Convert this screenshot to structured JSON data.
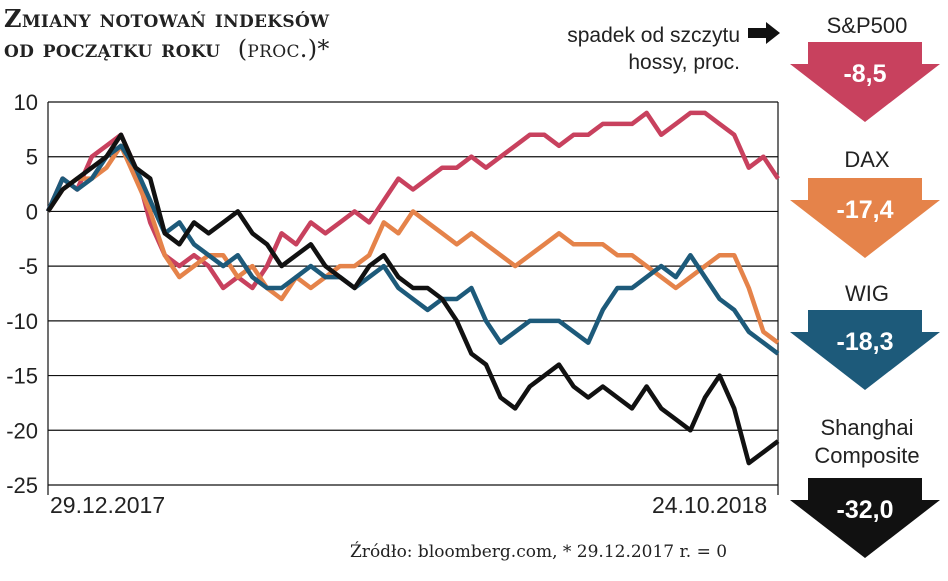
{
  "title": {
    "line1": "Zmiany notowań indeksów",
    "line2": "od początku roku",
    "unit": "(proc.)*"
  },
  "note": {
    "line1": "spadek od szczytu",
    "line2": "hossy, proc."
  },
  "source": "Źródło: bloomberg.com, * 29.12.2017 r. = 0",
  "indices": [
    {
      "name": "S&P500",
      "drop": "-8,5",
      "color": "#c8415e"
    },
    {
      "name": "DAX",
      "drop": "-17,4",
      "color": "#e5834a"
    },
    {
      "name": "WIG",
      "drop": "-18,3",
      "color": "#1d5a7a"
    },
    {
      "name": "Shanghai Composite",
      "drop": "-32,0",
      "color": "#111111"
    }
  ],
  "chart_data": {
    "type": "line",
    "x_start": "29.12.2017",
    "x_end": "24.10.2018",
    "ylim": [
      -25,
      10
    ],
    "yticks": [
      10,
      5,
      0,
      -5,
      -10,
      -15,
      -20,
      -25
    ],
    "series": [
      {
        "name": "S&P500",
        "color": "#c8415e",
        "x": [
          0,
          2,
          4,
          6,
          8,
          10,
          12,
          14,
          16,
          18,
          20,
          22,
          24,
          26,
          28,
          30,
          32,
          34,
          36,
          38,
          40,
          42,
          44,
          46,
          48,
          50,
          52,
          54,
          56,
          58,
          60,
          62,
          64,
          66,
          68,
          70,
          72,
          74,
          76,
          78,
          80,
          82,
          84,
          86,
          88,
          90,
          92,
          94,
          96,
          98,
          100
        ],
        "y": [
          0,
          3,
          2,
          5,
          6,
          7,
          4,
          -1,
          -4,
          -5,
          -4,
          -5,
          -7,
          -6,
          -7,
          -5,
          -2,
          -3,
          -1,
          -2,
          -1,
          0,
          -1,
          1,
          3,
          2,
          3,
          4,
          4,
          5,
          4,
          5,
          6,
          7,
          7,
          6,
          7,
          7,
          8,
          8,
          8,
          9,
          7,
          8,
          9,
          9,
          8,
          7,
          4,
          5,
          3
        ]
      },
      {
        "name": "DAX",
        "color": "#e5834a",
        "x": [
          0,
          2,
          4,
          6,
          8,
          10,
          12,
          14,
          16,
          18,
          20,
          22,
          24,
          26,
          28,
          30,
          32,
          34,
          36,
          38,
          40,
          42,
          44,
          46,
          48,
          50,
          52,
          54,
          56,
          58,
          60,
          62,
          64,
          66,
          68,
          70,
          72,
          74,
          76,
          78,
          80,
          82,
          84,
          86,
          88,
          90,
          92,
          94,
          96,
          98,
          100
        ],
        "y": [
          0,
          2,
          3,
          3,
          4,
          6,
          3,
          0,
          -4,
          -6,
          -5,
          -4,
          -4,
          -6,
          -5,
          -7,
          -8,
          -6,
          -7,
          -6,
          -5,
          -5,
          -4,
          -1,
          -2,
          0,
          -1,
          -2,
          -3,
          -2,
          -3,
          -4,
          -5,
          -4,
          -3,
          -2,
          -3,
          -3,
          -3,
          -4,
          -4,
          -5,
          -6,
          -7,
          -6,
          -5,
          -4,
          -4,
          -7,
          -11,
          -12
        ]
      },
      {
        "name": "WIG",
        "color": "#1d5a7a",
        "x": [
          0,
          2,
          4,
          6,
          8,
          10,
          12,
          14,
          16,
          18,
          20,
          22,
          24,
          26,
          28,
          30,
          32,
          34,
          36,
          38,
          40,
          42,
          44,
          46,
          48,
          50,
          52,
          54,
          56,
          58,
          60,
          62,
          64,
          66,
          68,
          70,
          72,
          74,
          76,
          78,
          80,
          82,
          84,
          86,
          88,
          90,
          92,
          94,
          96,
          98,
          100
        ],
        "y": [
          0,
          3,
          2,
          3,
          5,
          6,
          4,
          1,
          -2,
          -1,
          -3,
          -4,
          -5,
          -4,
          -6,
          -7,
          -7,
          -6,
          -5,
          -6,
          -6,
          -7,
          -6,
          -5,
          -7,
          -8,
          -9,
          -8,
          -8,
          -7,
          -10,
          -12,
          -11,
          -10,
          -10,
          -10,
          -11,
          -12,
          -9,
          -7,
          -7,
          -6,
          -5,
          -6,
          -4,
          -6,
          -8,
          -9,
          -11,
          -12,
          -13
        ]
      },
      {
        "name": "Shanghai Composite",
        "color": "#111111",
        "x": [
          0,
          2,
          4,
          6,
          8,
          10,
          12,
          14,
          16,
          18,
          20,
          22,
          24,
          26,
          28,
          30,
          32,
          34,
          36,
          38,
          40,
          42,
          44,
          46,
          48,
          50,
          52,
          54,
          56,
          58,
          60,
          62,
          64,
          66,
          68,
          70,
          72,
          74,
          76,
          78,
          80,
          82,
          84,
          86,
          88,
          90,
          92,
          94,
          96,
          98,
          100
        ],
        "y": [
          0,
          2,
          3,
          4,
          5,
          7,
          4,
          3,
          -2,
          -3,
          -1,
          -2,
          -1,
          0,
          -2,
          -3,
          -5,
          -4,
          -3,
          -5,
          -6,
          -7,
          -5,
          -4,
          -6,
          -7,
          -7,
          -8,
          -10,
          -13,
          -14,
          -17,
          -18,
          -16,
          -15,
          -14,
          -16,
          -17,
          -16,
          -17,
          -18,
          -16,
          -18,
          -19,
          -20,
          -17,
          -15,
          -18,
          -23,
          -22,
          -21
        ]
      }
    ]
  }
}
